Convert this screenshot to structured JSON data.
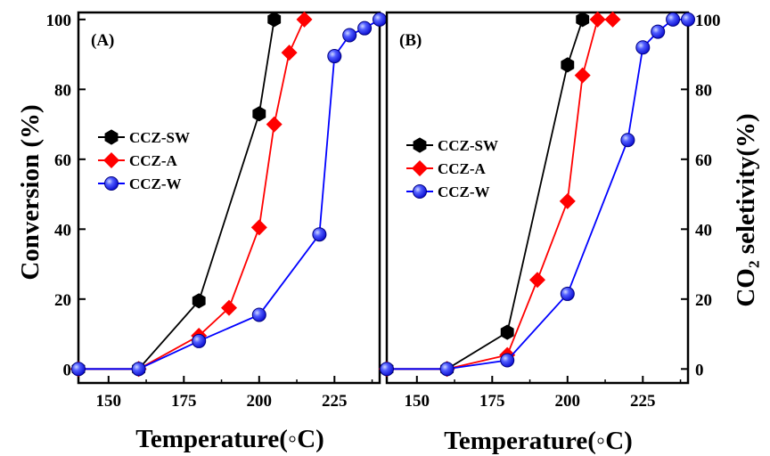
{
  "chart_data": [
    {
      "type": "line",
      "panel_label": "(A)",
      "xlabel": "Temperature(◦C)",
      "ylabel": "Conversion (%)",
      "xlim": [
        140,
        240
      ],
      "ylim": [
        -4,
        102
      ],
      "xticks": [
        150,
        175,
        200,
        225
      ],
      "yticks": [
        0,
        20,
        40,
        60,
        80,
        100
      ],
      "legend_position": "center-left",
      "series": [
        {
          "name": "CCZ-SW",
          "color": "#000000",
          "marker": "hexagon",
          "points": [
            [
              140,
              0
            ],
            [
              160,
              0
            ],
            [
              180,
              19.5
            ],
            [
              200,
              73
            ],
            [
              205,
              100
            ]
          ]
        },
        {
          "name": "CCZ-A",
          "color": "#ff0000",
          "marker": "diamond",
          "points": [
            [
              140,
              0
            ],
            [
              160,
              0
            ],
            [
              180,
              9.5
            ],
            [
              190,
              17.5
            ],
            [
              200,
              40.5
            ],
            [
              205,
              70
            ],
            [
              210,
              90.5
            ],
            [
              215,
              100
            ]
          ]
        },
        {
          "name": "CCZ-W",
          "color": "#0000ff",
          "marker": "sphere",
          "points": [
            [
              140,
              0
            ],
            [
              160,
              0
            ],
            [
              180,
              8
            ],
            [
              200,
              15.5
            ],
            [
              220,
              38.5
            ],
            [
              225,
              89.5
            ],
            [
              230,
              95.5
            ],
            [
              235,
              97.5
            ],
            [
              240,
              100
            ]
          ]
        }
      ]
    },
    {
      "type": "line",
      "panel_label": "(B)",
      "xlabel": "Temperature(◦C)",
      "ylabel": "CO₂ seletivity(%)",
      "xlim": [
        140,
        240
      ],
      "ylim": [
        -4,
        102
      ],
      "xticks": [
        150,
        175,
        200,
        225
      ],
      "yticks": [
        0,
        20,
        40,
        60,
        80,
        100
      ],
      "y_axis_side": "right",
      "legend_position": "center-left",
      "series": [
        {
          "name": "CCZ-SW",
          "color": "#000000",
          "marker": "hexagon",
          "points": [
            [
              140,
              0
            ],
            [
              160,
              0
            ],
            [
              180,
              10.5
            ],
            [
              200,
              87
            ],
            [
              205,
              100
            ]
          ]
        },
        {
          "name": "CCZ-A",
          "color": "#ff0000",
          "marker": "diamond",
          "points": [
            [
              140,
              0
            ],
            [
              160,
              0
            ],
            [
              180,
              4
            ],
            [
              190,
              25.5
            ],
            [
              200,
              48
            ],
            [
              205,
              84
            ],
            [
              210,
              100
            ],
            [
              215,
              100
            ]
          ]
        },
        {
          "name": "CCZ-W",
          "color": "#0000ff",
          "marker": "sphere",
          "points": [
            [
              140,
              0
            ],
            [
              160,
              0
            ],
            [
              180,
              2.5
            ],
            [
              200,
              21.5
            ],
            [
              220,
              65.5
            ],
            [
              225,
              92
            ],
            [
              230,
              96.5
            ],
            [
              235,
              100
            ],
            [
              240,
              100
            ]
          ]
        }
      ]
    }
  ]
}
